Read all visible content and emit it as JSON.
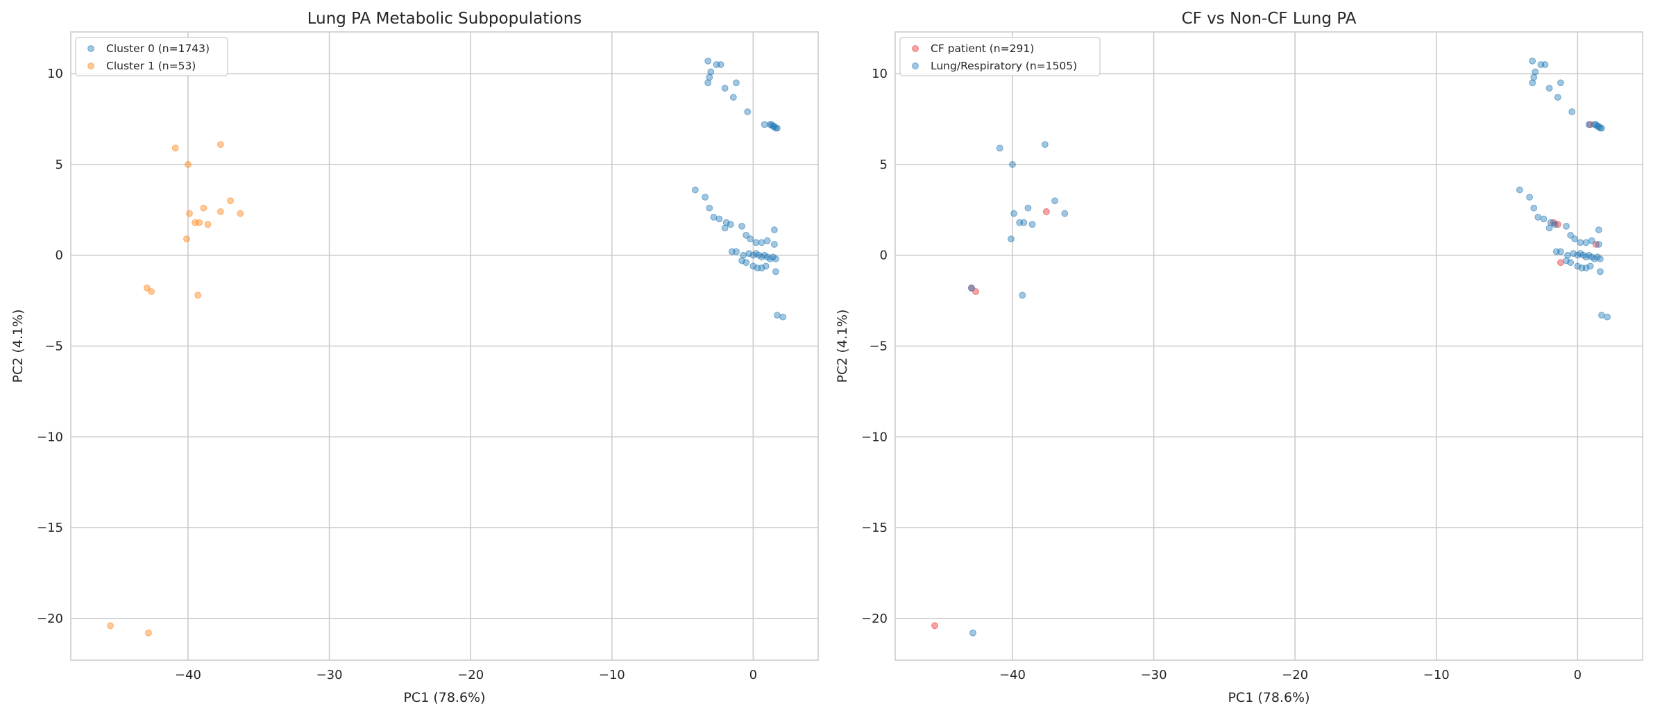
{
  "chart_data": [
    {
      "type": "scatter",
      "title": "Lung PA Metabolic Subpopulations",
      "xlabel": "PC1 (78.6%)",
      "ylabel": "PC2 (4.1%)",
      "xlim": [
        -48.3,
        4.6
      ],
      "ylim": [
        -22.3,
        12.3
      ],
      "xticks": [
        -40,
        -30,
        -20,
        -10,
        0
      ],
      "yticks": [
        -20,
        -15,
        -10,
        -5,
        0,
        5,
        10
      ],
      "grid": true,
      "legend_position": "top-left",
      "series": [
        {
          "name": "Cluster 0 (n=1743)",
          "color": "#1f77b4",
          "points": [
            [
              -3.2,
              10.7
            ],
            [
              -2.6,
              10.5
            ],
            [
              -2.3,
              10.5
            ],
            [
              -3.0,
              10.1
            ],
            [
              -3.1,
              9.8
            ],
            [
              -3.2,
              9.5
            ],
            [
              -1.2,
              9.5
            ],
            [
              -2.0,
              9.2
            ],
            [
              -1.4,
              8.7
            ],
            [
              -0.4,
              7.9
            ],
            [
              0.8,
              7.2
            ],
            [
              1.2,
              7.2
            ],
            [
              1.3,
              7.2
            ],
            [
              1.4,
              7.1
            ],
            [
              1.5,
              7.1
            ],
            [
              1.6,
              7.0
            ],
            [
              1.7,
              7.0
            ],
            [
              -4.1,
              3.6
            ],
            [
              -3.4,
              3.2
            ],
            [
              -3.1,
              2.6
            ],
            [
              -2.8,
              2.1
            ],
            [
              -2.4,
              2.0
            ],
            [
              -1.9,
              1.8
            ],
            [
              -1.6,
              1.7
            ],
            [
              -2.0,
              1.5
            ],
            [
              -0.8,
              1.6
            ],
            [
              -0.5,
              1.1
            ],
            [
              -0.2,
              0.9
            ],
            [
              0.2,
              0.7
            ],
            [
              0.6,
              0.7
            ],
            [
              1.0,
              0.8
            ],
            [
              1.5,
              1.4
            ],
            [
              1.5,
              0.6
            ],
            [
              -1.5,
              0.2
            ],
            [
              -1.2,
              0.2
            ],
            [
              -0.7,
              0.0
            ],
            [
              -0.3,
              0.1
            ],
            [
              0.0,
              0.0
            ],
            [
              0.2,
              0.1
            ],
            [
              0.4,
              0.0
            ],
            [
              0.6,
              -0.1
            ],
            [
              0.8,
              0.0
            ],
            [
              1.0,
              -0.1
            ],
            [
              1.2,
              -0.2
            ],
            [
              1.4,
              -0.1
            ],
            [
              1.6,
              -0.2
            ],
            [
              -0.8,
              -0.3
            ],
            [
              -0.5,
              -0.4
            ],
            [
              0.0,
              -0.6
            ],
            [
              0.3,
              -0.7
            ],
            [
              0.6,
              -0.7
            ],
            [
              0.9,
              -0.6
            ],
            [
              1.6,
              -0.9
            ],
            [
              1.7,
              -3.3
            ],
            [
              2.1,
              -3.4
            ]
          ]
        },
        {
          "name": "Cluster 1 (n=53)",
          "color": "#ff7f0e",
          "points": [
            [
              -40.9,
              5.9
            ],
            [
              -40.0,
              5.0
            ],
            [
              -37.7,
              6.1
            ],
            [
              -39.9,
              2.3
            ],
            [
              -38.9,
              2.6
            ],
            [
              -37.0,
              3.0
            ],
            [
              -37.7,
              2.4
            ],
            [
              -36.3,
              2.3
            ],
            [
              -39.5,
              1.8
            ],
            [
              -39.2,
              1.8
            ],
            [
              -38.6,
              1.7
            ],
            [
              -40.1,
              0.9
            ],
            [
              -42.9,
              -1.8
            ],
            [
              -42.6,
              -2.0
            ],
            [
              -39.3,
              -2.2
            ],
            [
              -45.5,
              -20.4
            ],
            [
              -42.8,
              -20.8
            ]
          ]
        }
      ]
    },
    {
      "type": "scatter",
      "title": "CF vs Non-CF Lung PA",
      "xlabel": "PC1 (78.6%)",
      "ylabel": "PC2 (4.1%)",
      "xlim": [
        -48.3,
        4.6
      ],
      "ylim": [
        -22.3,
        12.3
      ],
      "xticks": [
        -40,
        -30,
        -20,
        -10,
        0
      ],
      "yticks": [
        -20,
        -15,
        -10,
        -5,
        0,
        5,
        10
      ],
      "grid": true,
      "legend_position": "top-left",
      "series": [
        {
          "name": "CF patient (n=291)",
          "color": "#e8262b",
          "points": [
            [
              -42.9,
              -1.8
            ],
            [
              -42.6,
              -2.0
            ],
            [
              -37.6,
              2.4
            ],
            [
              -45.5,
              -20.4
            ],
            [
              -1.4,
              1.7
            ],
            [
              -1.7,
              1.8
            ],
            [
              -1.2,
              -0.4
            ],
            [
              1.3,
              0.6
            ],
            [
              0.9,
              7.2
            ]
          ]
        },
        {
          "name": "Lung/Respiratory (n=1505)",
          "color": "#1f77b4",
          "points": [
            [
              -40.9,
              5.9
            ],
            [
              -40.0,
              5.0
            ],
            [
              -37.7,
              6.1
            ],
            [
              -39.9,
              2.3
            ],
            [
              -38.9,
              2.6
            ],
            [
              -37.0,
              3.0
            ],
            [
              -36.3,
              2.3
            ],
            [
              -39.5,
              1.8
            ],
            [
              -39.2,
              1.8
            ],
            [
              -38.6,
              1.7
            ],
            [
              -40.1,
              0.9
            ],
            [
              -39.3,
              -2.2
            ],
            [
              -42.8,
              -20.8
            ],
            [
              -42.9,
              -1.8
            ],
            [
              -3.2,
              10.7
            ],
            [
              -2.6,
              10.5
            ],
            [
              -2.3,
              10.5
            ],
            [
              -3.0,
              10.1
            ],
            [
              -3.1,
              9.8
            ],
            [
              -3.2,
              9.5
            ],
            [
              -1.2,
              9.5
            ],
            [
              -2.0,
              9.2
            ],
            [
              -1.4,
              8.7
            ],
            [
              -0.4,
              7.9
            ],
            [
              0.8,
              7.2
            ],
            [
              1.2,
              7.2
            ],
            [
              1.3,
              7.2
            ],
            [
              1.4,
              7.1
            ],
            [
              1.5,
              7.1
            ],
            [
              1.6,
              7.0
            ],
            [
              1.7,
              7.0
            ],
            [
              -4.1,
              3.6
            ],
            [
              -3.4,
              3.2
            ],
            [
              -3.1,
              2.6
            ],
            [
              -2.8,
              2.1
            ],
            [
              -2.4,
              2.0
            ],
            [
              -1.9,
              1.8
            ],
            [
              -1.6,
              1.7
            ],
            [
              -2.0,
              1.5
            ],
            [
              -0.8,
              1.6
            ],
            [
              -0.5,
              1.1
            ],
            [
              -0.2,
              0.9
            ],
            [
              0.2,
              0.7
            ],
            [
              0.6,
              0.7
            ],
            [
              1.0,
              0.8
            ],
            [
              1.5,
              1.4
            ],
            [
              1.5,
              0.6
            ],
            [
              -1.5,
              0.2
            ],
            [
              -1.2,
              0.2
            ],
            [
              -0.7,
              0.0
            ],
            [
              -0.3,
              0.1
            ],
            [
              0.0,
              0.0
            ],
            [
              0.2,
              0.1
            ],
            [
              0.4,
              0.0
            ],
            [
              0.6,
              -0.1
            ],
            [
              0.8,
              0.0
            ],
            [
              1.0,
              -0.1
            ],
            [
              1.2,
              -0.2
            ],
            [
              1.4,
              -0.1
            ],
            [
              1.6,
              -0.2
            ],
            [
              -0.8,
              -0.3
            ],
            [
              -0.5,
              -0.4
            ],
            [
              0.0,
              -0.6
            ],
            [
              0.3,
              -0.7
            ],
            [
              0.6,
              -0.7
            ],
            [
              0.9,
              -0.6
            ],
            [
              1.6,
              -0.9
            ],
            [
              1.7,
              -3.3
            ],
            [
              2.1,
              -3.4
            ]
          ]
        }
      ]
    }
  ]
}
